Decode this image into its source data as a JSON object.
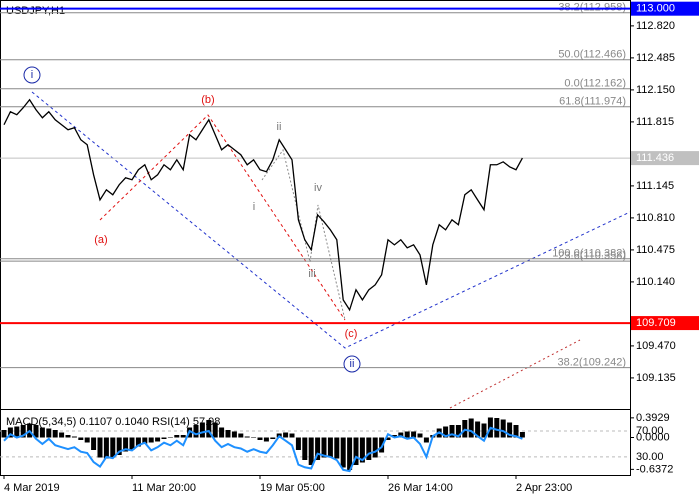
{
  "chart_data": [
    {
      "type": "line",
      "title": "USDJPY,H1",
      "color": "#000000",
      "categories": [
        "4 Mar 2019",
        null,
        null,
        null,
        null,
        null,
        null,
        null,
        null,
        null,
        null,
        null,
        null,
        null,
        null,
        null,
        null,
        null,
        null,
        null,
        "11 Mar 20:00",
        null,
        null,
        null,
        null,
        null,
        null,
        null,
        null,
        null,
        null,
        null,
        null,
        null,
        null,
        null,
        null,
        null,
        null,
        null,
        "19 Mar 05:00",
        null,
        null,
        null,
        null,
        null,
        null,
        null,
        null,
        null,
        null,
        null,
        null,
        null,
        null,
        null,
        null,
        null,
        null,
        null,
        "26 Mar 14:00",
        null,
        null,
        null,
        null,
        null,
        null,
        null,
        null,
        null,
        null,
        null,
        null,
        null,
        null,
        null,
        null,
        null,
        null,
        null,
        "2 Apr 23:00",
        null
      ],
      "values": [
        111.785,
        111.921,
        111.89,
        111.963,
        112.047,
        111.942,
        111.858,
        111.921,
        111.837,
        111.785,
        111.733,
        111.754,
        111.628,
        111.576,
        111.261,
        110.999,
        111.104,
        111.052,
        111.157,
        111.23,
        111.209,
        111.314,
        111.366,
        111.209,
        111.261,
        111.366,
        111.314,
        111.418,
        111.314,
        111.68,
        111.628,
        111.733,
        111.837,
        111.68,
        111.523,
        111.576,
        111.523,
        111.471,
        111.366,
        111.418,
        111.314,
        111.293,
        111.418,
        111.628,
        111.523,
        111.418,
        110.79,
        110.581,
        110.476,
        110.842,
        110.769,
        110.685,
        110.581,
        109.952,
        109.847,
        110.057,
        109.952,
        110.057,
        110.109,
        110.214,
        110.581,
        110.528,
        110.581,
        110.497,
        110.528,
        110.423,
        110.109,
        110.528,
        110.738,
        110.685,
        110.79,
        110.738,
        111.052,
        111.104,
        110.999,
        110.895,
        111.366,
        111.366,
        111.397,
        111.345,
        111.314,
        111.436
      ],
      "ylim": [
        108.82,
        113.07
      ],
      "yticks": [
        {
          "value": 112.82,
          "label": "112.820"
        },
        {
          "value": 112.485,
          "label": "112.485"
        },
        {
          "value": 112.15,
          "label": "112.150"
        },
        {
          "value": 111.815,
          "label": "111.815"
        },
        {
          "value": 111.145,
          "label": "111.145"
        },
        {
          "value": 110.81,
          "label": "110.810"
        },
        {
          "value": 110.475,
          "label": "110.475"
        },
        {
          "value": 110.14,
          "label": "110.140"
        },
        {
          "value": 109.47,
          "label": "109.470"
        },
        {
          "value": 109.135,
          "label": "109.135"
        }
      ],
      "levels": [
        {
          "value": 112.958,
          "label": "38.2(112.958)"
        },
        {
          "value": 112.466,
          "label": "50.0(112.466)"
        },
        {
          "value": 112.162,
          "label": "0.0(112.162)"
        },
        {
          "value": 111.974,
          "label": "61.8(111.974)"
        },
        {
          "value": 110.382,
          "label": "100.0(110.382)"
        },
        {
          "value": 110.358,
          "label": "23.6(110.358)"
        },
        {
          "value": 109.242,
          "label": "38.2(109.242)"
        }
      ],
      "price_lines": [
        {
          "value": 113,
          "label": "113.000",
          "color": "#0000ff"
        },
        {
          "value": 111.436,
          "label": "111.436",
          "color": "#c0c0c0"
        },
        {
          "value": 109.709,
          "label": "109.709",
          "color": "#ff0000"
        }
      ],
      "annotations": [
        {
          "text": "i",
          "color": "#1a2aa8",
          "circled": true
        },
        {
          "text": "(a)",
          "color": "#e01010"
        },
        {
          "text": "(b)",
          "color": "#e01010"
        },
        {
          "text": "ii",
          "color": "#777777"
        },
        {
          "text": "i",
          "color": "#777777"
        },
        {
          "text": "iv",
          "color": "#777777"
        },
        {
          "text": "iii",
          "color": "#777777"
        },
        {
          "text": "(c)",
          "color": "#e01010"
        },
        {
          "text": "ii",
          "color": "#1a2aa8",
          "circled": true
        }
      ]
    },
    {
      "type": "macd",
      "title": "MACD(5,34,5) 0.1107 0.1040 RSI(14) 57.98",
      "ylim": [
        -0.75,
        0.53
      ],
      "y2lim": [
        2,
        101
      ],
      "yticks": [
        {
          "value": 0.3929,
          "label": "0.3929"
        },
        {
          "value": 0,
          "label": "0.0000"
        },
        {
          "value": -0.6372,
          "label": "-0.6372"
        }
      ],
      "y2ticks": [
        {
          "value": 70,
          "label": "70.00"
        },
        {
          "value": 30,
          "label": "30.00"
        }
      ],
      "series": [
        {
          "name": "MACD",
          "color": "#000000",
          "values": [
            0.15,
            0.2,
            0.22,
            0.25,
            0.28,
            0.25,
            0.2,
            0.18,
            0.15,
            0.1,
            0.05,
            0.02,
            -0.05,
            -0.1,
            -0.25,
            -0.4,
            -0.42,
            -0.4,
            -0.35,
            -0.28,
            -0.25,
            -0.18,
            -0.12,
            -0.1,
            -0.08,
            -0.03,
            0.0,
            0.05,
            0.05,
            0.2,
            0.25,
            0.3,
            0.35,
            0.3,
            0.2,
            0.15,
            0.12,
            0.08,
            0.02,
            0.0,
            -0.05,
            -0.08,
            -0.03,
            0.08,
            0.1,
            0.08,
            -0.25,
            -0.45,
            -0.55,
            -0.45,
            -0.4,
            -0.4,
            -0.42,
            -0.6,
            -0.65,
            -0.55,
            -0.5,
            -0.45,
            -0.4,
            -0.3,
            -0.05,
            0.05,
            0.1,
            0.12,
            0.12,
            0.08,
            -0.1,
            0.05,
            0.18,
            0.22,
            0.25,
            0.25,
            0.35,
            0.38,
            0.32,
            0.28,
            0.4,
            0.39,
            0.36,
            0.3,
            0.25,
            0.11
          ]
        },
        {
          "name": "RSI",
          "color": "#1e90ff",
          "axis": "y2",
          "values": [
            55,
            65,
            60,
            63,
            70,
            58,
            50,
            58,
            48,
            45,
            42,
            45,
            38,
            36,
            22,
            15,
            30,
            28,
            38,
            42,
            40,
            48,
            52,
            40,
            45,
            52,
            48,
            55,
            48,
            70,
            65,
            68,
            70,
            55,
            45,
            50,
            45,
            43,
            38,
            42,
            38,
            36,
            48,
            62,
            55,
            48,
            18,
            14,
            12,
            35,
            32,
            30,
            25,
            10,
            8,
            30,
            25,
            35,
            38,
            45,
            65,
            60,
            62,
            58,
            60,
            50,
            30,
            62,
            68,
            62,
            65,
            62,
            72,
            70,
            62,
            55,
            75,
            72,
            70,
            64,
            62,
            58
          ]
        }
      ]
    }
  ]
}
